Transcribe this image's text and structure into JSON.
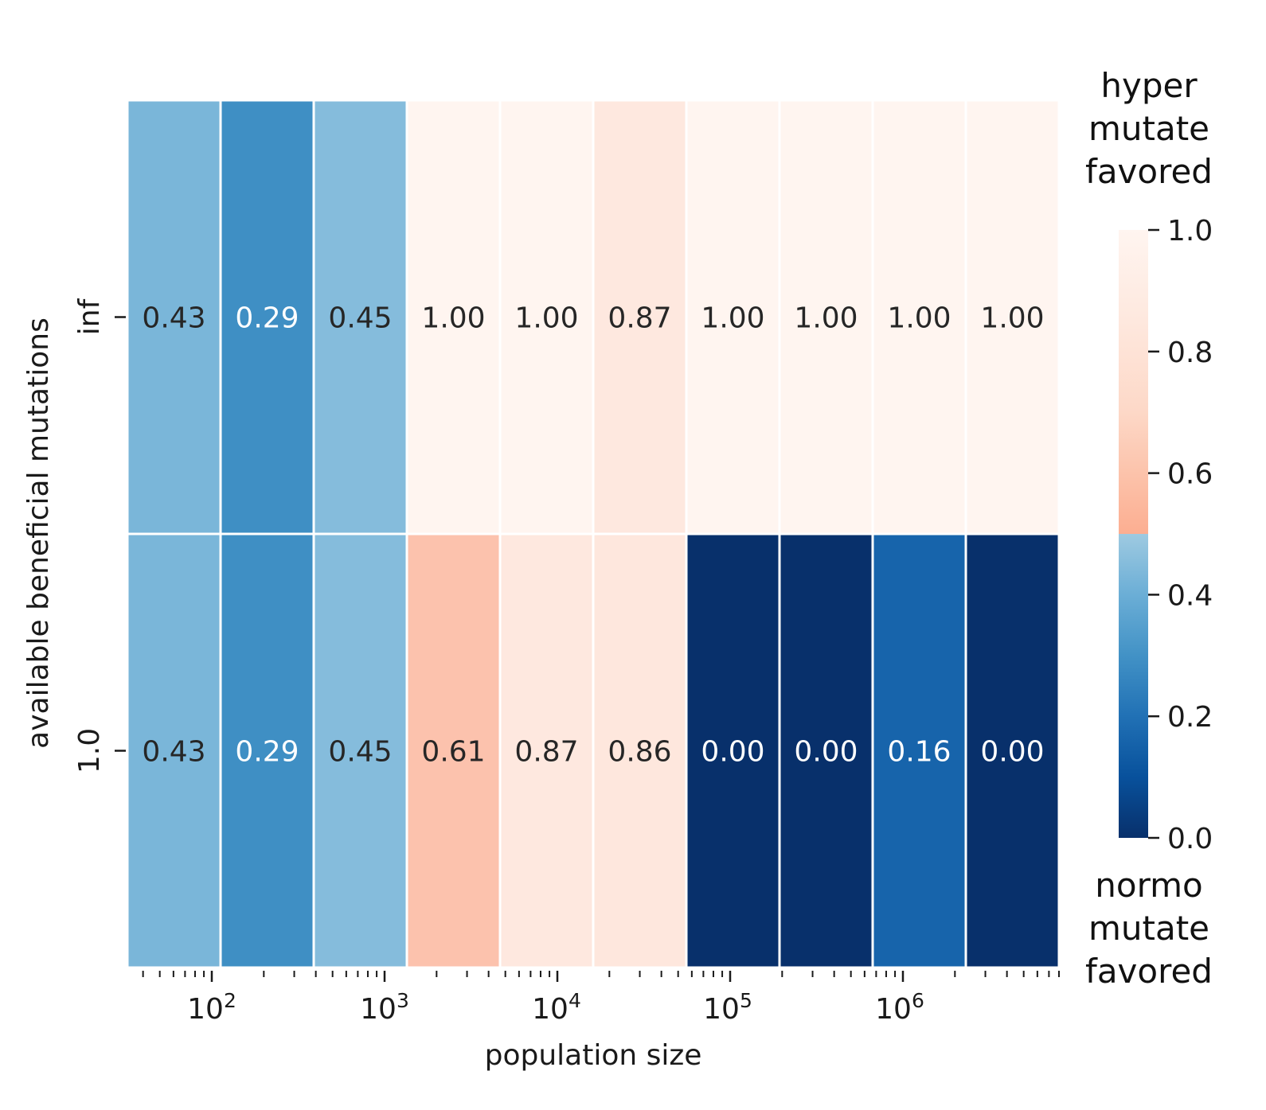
{
  "chart_data": {
    "type": "heatmap",
    "title": "",
    "xlabel": "population size",
    "ylabel": "available beneficial mutations",
    "rows": [
      "inf",
      "1.0"
    ],
    "values": [
      [
        0.43,
        0.29,
        0.45,
        1.0,
        1.0,
        0.87,
        1.0,
        1.0,
        1.0,
        1.0
      ],
      [
        0.43,
        0.29,
        0.45,
        0.61,
        0.87,
        0.86,
        0.0,
        0.0,
        0.16,
        0.0
      ]
    ],
    "x_scale": "log",
    "x_tick_labels": [
      {
        "base": "10",
        "exp": "2"
      },
      {
        "base": "10",
        "exp": "3"
      },
      {
        "base": "10",
        "exp": "4"
      },
      {
        "base": "10",
        "exp": "5"
      },
      {
        "base": "10",
        "exp": "6"
      }
    ],
    "colorbar": {
      "range": [
        0,
        1
      ],
      "ticks": [
        "0.0",
        "0.2",
        "0.4",
        "0.6",
        "0.8",
        "1.0"
      ],
      "top_label": [
        "hyper",
        "mutate",
        "favored"
      ],
      "bottom_label": [
        "normo",
        "mutate",
        "favored"
      ],
      "colormap_low": "Blues_r",
      "colormap_high": "Reds"
    },
    "grid": false,
    "legend": "colorbar-right"
  }
}
